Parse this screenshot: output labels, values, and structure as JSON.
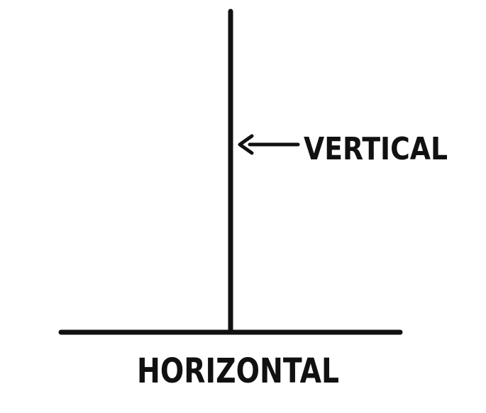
{
  "labels": {
    "vertical": "VERTICAL",
    "horizontal": "HORIZONTAL"
  },
  "colors": {
    "ink": "#111111",
    "background": "#ffffff"
  }
}
